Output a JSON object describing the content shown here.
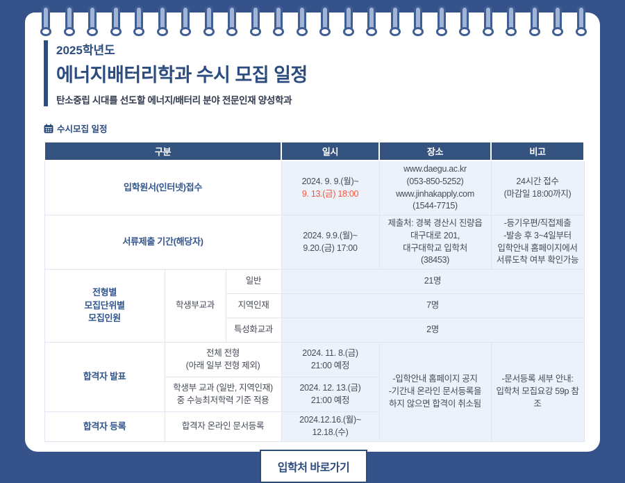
{
  "colors": {
    "background_navy": "#35538a",
    "table_header_navy": "#35537f",
    "title_navy": "#2d4c7e",
    "category_blue": "#33568f",
    "cell_light_blue": "#edf2fa",
    "deadline_red": "#f0593f"
  },
  "page": {
    "year_label": "2025학년도",
    "title": "에너지배터리학과 수시 모집 일정",
    "subtitle": "탄소중립 시대를 선도할 에너지/배터리 분야 전문인재 양성학과",
    "section_label": "수시모집 일정"
  },
  "table": {
    "headers": {
      "category": "구분",
      "datetime": "일시",
      "place": "장소",
      "note": "비고"
    },
    "application": {
      "category": "입학원서(인터넷)접수",
      "date1": "2024. 9. 9.(월)~",
      "date2": "9. 13.(금) 18:00",
      "place": [
        "www.daegu.ac.kr",
        "(053-850-5252)",
        "www.jinhakapply.com",
        "(1544-7715)"
      ],
      "note": [
        "24시간 접수",
        "(마감일 18:00까지)"
      ]
    },
    "documents": {
      "category": "서류제출 기간(해당자)",
      "date1": "2024. 9.9.(월)~",
      "date2": "9.20.(금) 17:00",
      "place": [
        "제출처: 경북 경산시 진량읍",
        "대구대로 201,",
        "대구대학교 입학처",
        "(38453)"
      ],
      "note": [
        "-등기우편/직접제출",
        "-발송 후 3~4일부터",
        "입학안내 홈페이지에서",
        "서류도착 여부 확인가능"
      ]
    },
    "quota": {
      "category1": "전형별",
      "category2": "모집단위별",
      "category3": "모집인원",
      "track": "학생부교과",
      "items": [
        {
          "label": "일반",
          "value": "21명"
        },
        {
          "label": "지역인재",
          "value": "7명"
        },
        {
          "label": "특성화교과",
          "value": "2명"
        }
      ]
    },
    "announcement": {
      "category": "합격자 발표",
      "sub1": [
        "전체 전형",
        "(아래 일부 전형 제외)"
      ],
      "sub1_date": [
        "2024. 11. 8.(금)",
        "21:00 예정"
      ],
      "sub2": [
        "학생부 교과 (일반, 지역인재)",
        "중 수능최저학력 기준 적용"
      ],
      "sub2_date": [
        "2024. 12. 13.(금)",
        "21:00 예정"
      ],
      "place": [
        "-입학안내 홈페이지 공지",
        "-기간내 온라인 문서등록을",
        "하지 않으면 합격이 취소됨"
      ],
      "note": [
        "-문서등록 세부 안내:",
        "입학처 모집요강 59p 참조"
      ]
    },
    "registration": {
      "category": "합격자 등록",
      "sub": "합격자 온라인 문서등록",
      "date": [
        "2024.12.16.(월)~",
        "12.18.(수)"
      ]
    }
  },
  "button": {
    "label": "입학처 바로가기"
  }
}
